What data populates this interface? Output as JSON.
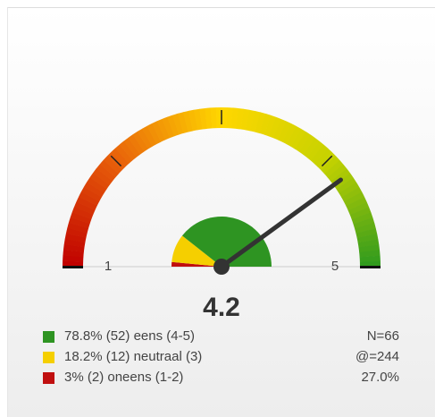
{
  "chart_data": {
    "type": "gauge",
    "value": 4.2,
    "ylim": [
      1,
      5
    ],
    "yticks": [
      1,
      5
    ],
    "minor_ticks": [
      2,
      3,
      4
    ],
    "categories": [
      "eens (4-5)",
      "neutraal (3)",
      "oneens (1-2)"
    ],
    "values": [
      78.8,
      18.2,
      3
    ],
    "value_labels": [
      "78.8%",
      "18.2%",
      "3%"
    ],
    "count_labels": [
      "(52)",
      "(12)",
      "(2)"
    ],
    "colors": [
      "#2e9422",
      "#f5cf00",
      "#c00f0f"
    ],
    "stats": [
      "N=66",
      "@=244",
      "27.0%"
    ]
  }
}
